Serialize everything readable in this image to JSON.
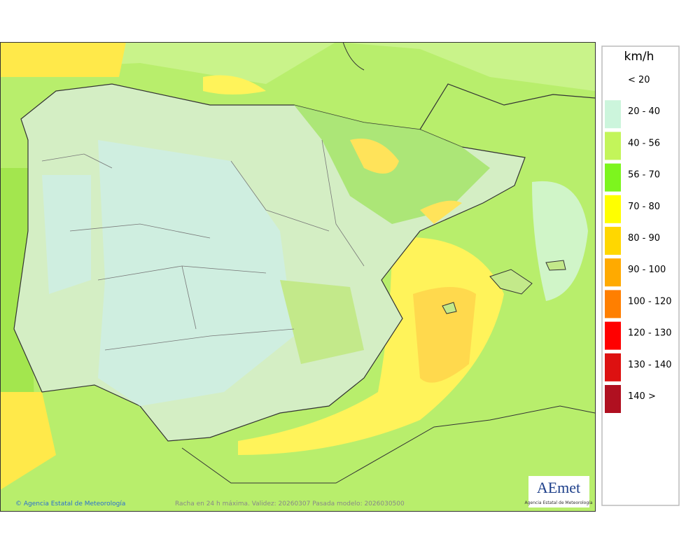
{
  "map": {
    "credit": "© Agencia Estatal de Meteorología",
    "caption": "Racha en 24 h máxima. Validez: 20260307 Pasada modelo: 2026030500",
    "logo": {
      "name": "AEmet",
      "subtitle": "Agencia Estatal de Meteorología"
    }
  },
  "legend": {
    "title": "km/h",
    "items": [
      {
        "label": "< 20",
        "color": "#ffffff"
      },
      {
        "label": "20 - 40",
        "color": "#ccf5dc"
      },
      {
        "label": "40 - 56",
        "color": "#c3f55a"
      },
      {
        "label": "56 - 70",
        "color": "#7df51e"
      },
      {
        "label": "70 - 80",
        "color": "#ffff00"
      },
      {
        "label": "80 - 90",
        "color": "#ffd700"
      },
      {
        "label": "90 - 100",
        "color": "#ffaa00"
      },
      {
        "label": "100 - 120",
        "color": "#ff7f00"
      },
      {
        "label": "120 - 130",
        "color": "#ff0000"
      },
      {
        "label": "130 - 140",
        "color": "#dd1111"
      },
      {
        "label": "140 >",
        "color": "#b01020"
      }
    ]
  }
}
